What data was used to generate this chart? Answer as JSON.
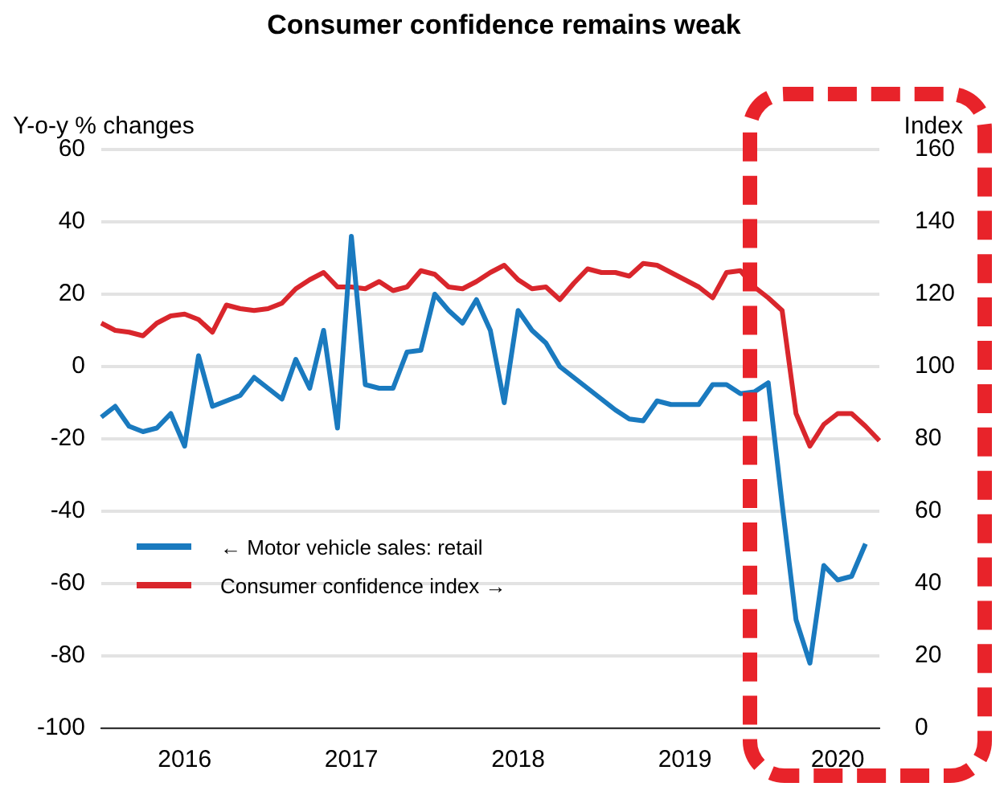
{
  "chart_data": {
    "type": "line",
    "title": "Consumer confidence remains weak",
    "ylabel": "Y-o-y % changes",
    "y2label": "Index",
    "categories": [
      null,
      null,
      null,
      null,
      null,
      null,
      "2016",
      null,
      null,
      null,
      null,
      null,
      null,
      null,
      null,
      null,
      null,
      null,
      "2017",
      null,
      null,
      null,
      null,
      null,
      null,
      null,
      null,
      null,
      null,
      null,
      "2018",
      null,
      null,
      null,
      null,
      null,
      null,
      null,
      null,
      null,
      null,
      null,
      "2019",
      null,
      null,
      null,
      null,
      null,
      null,
      null,
      null,
      null,
      null,
      "2020",
      null,
      null,
      null
    ],
    "series": [
      {
        "name": "← Motor vehicle sales: retail",
        "color": "#1a7abf",
        "values": [
          -14,
          -11,
          -16.5,
          -18,
          -17,
          -13,
          -22,
          3,
          -11,
          -9.5,
          -8,
          -3,
          -6,
          -9,
          2,
          -6,
          10,
          -17,
          36,
          -5,
          -6,
          -6,
          4,
          4.5,
          20,
          15.5,
          12,
          18.5,
          10,
          -10,
          15.5,
          10,
          6.5,
          0,
          -3,
          -6,
          -9,
          -12,
          -14.5,
          -15,
          -9.5,
          -10.5,
          -10.5,
          -10.5,
          -5,
          -5,
          -7.5,
          -7,
          -4.5,
          -38,
          -70,
          -82,
          -55,
          -59,
          -58,
          -49,
          null
        ]
      },
      {
        "name": "Consumer confidence index →",
        "color": "#d9262c",
        "axis": "y2",
        "values": [
          112,
          110,
          109.5,
          108.5,
          112,
          114,
          114.5,
          113,
          109.5,
          117,
          116,
          115.5,
          116,
          117.5,
          121.5,
          124,
          126,
          122,
          122,
          121.5,
          123.5,
          121,
          122,
          126.5,
          125.5,
          122,
          121.5,
          123.5,
          126,
          128,
          124,
          121.5,
          122,
          118.5,
          123,
          127,
          126,
          126,
          125,
          128.5,
          128,
          126,
          124,
          122,
          119,
          126,
          126.5,
          122,
          119,
          115.5,
          87,
          78,
          84,
          87,
          87,
          83.5,
          79.5
        ]
      }
    ],
    "ylim": [
      -100,
      60
    ],
    "yticks": [
      -100,
      -80,
      -60,
      -40,
      -20,
      0,
      20,
      40,
      60
    ],
    "y2lim": [
      0,
      160
    ],
    "y2ticks": [
      0,
      20,
      40,
      60,
      80,
      100,
      120,
      140,
      160
    ],
    "grid": "y",
    "legend": "bottom left",
    "line_style": "solid",
    "marker": "none"
  }
}
